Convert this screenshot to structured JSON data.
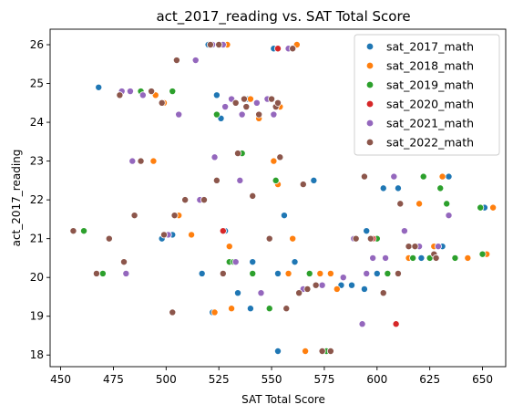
{
  "chart_data": {
    "type": "scatter",
    "title": "act_2017_reading vs. SAT Total Score",
    "xlabel": "SAT Total Score",
    "ylabel": "act_2017_reading",
    "xlim": [
      445,
      661
    ],
    "ylim": [
      17.7,
      26.4
    ],
    "xticks": [
      450,
      475,
      500,
      525,
      550,
      575,
      600,
      625,
      650
    ],
    "yticks": [
      18,
      19,
      20,
      21,
      22,
      23,
      24,
      25,
      26
    ],
    "grid": false,
    "legend_position": "top-right",
    "series": [
      {
        "name": "sat_2017_math",
        "color": "#1f77b4",
        "points": [
          [
            468,
            24.9
          ],
          [
            503,
            21.1
          ],
          [
            498,
            21.0
          ],
          [
            520,
            26.0
          ],
          [
            524,
            24.7
          ],
          [
            526,
            24.1
          ],
          [
            528,
            21.2
          ],
          [
            539,
            24.6
          ],
          [
            517,
            20.1
          ],
          [
            522,
            19.1
          ],
          [
            534,
            19.6
          ],
          [
            540,
            19.2
          ],
          [
            541,
            20.4
          ],
          [
            551,
            25.9
          ],
          [
            553,
            20.1
          ],
          [
            553,
            18.1
          ],
          [
            556,
            21.6
          ],
          [
            561,
            20.4
          ],
          [
            570,
            22.5
          ],
          [
            583,
            19.8
          ],
          [
            588,
            19.8
          ],
          [
            594,
            19.7
          ],
          [
            595,
            21.2
          ],
          [
            600,
            20.1
          ],
          [
            603,
            22.3
          ],
          [
            610,
            22.3
          ],
          [
            621,
            20.5
          ],
          [
            631,
            20.8
          ],
          [
            634,
            22.6
          ],
          [
            651,
            21.8
          ]
        ]
      },
      {
        "name": "sat_2018_math",
        "color": "#ff7f0e",
        "points": [
          [
            494,
            23.0
          ],
          [
            495,
            24.7
          ],
          [
            499,
            24.5
          ],
          [
            506,
            21.6
          ],
          [
            512,
            21.1
          ],
          [
            523,
            19.1
          ],
          [
            529,
            26.0
          ],
          [
            530,
            20.8
          ],
          [
            531,
            19.2
          ],
          [
            540,
            24.6
          ],
          [
            544,
            24.1
          ],
          [
            550,
            24.6
          ],
          [
            551,
            23.0
          ],
          [
            553,
            22.4
          ],
          [
            554,
            24.4
          ],
          [
            558,
            20.1
          ],
          [
            560,
            21.0
          ],
          [
            562,
            26.0
          ],
          [
            566,
            18.1
          ],
          [
            573,
            20.1
          ],
          [
            578,
            20.1
          ],
          [
            581,
            19.7
          ],
          [
            600,
            21.0
          ],
          [
            605,
            20.1
          ],
          [
            615,
            20.5
          ],
          [
            620,
            21.9
          ],
          [
            627,
            20.8
          ],
          [
            631,
            22.6
          ],
          [
            643,
            20.5
          ],
          [
            652,
            20.6
          ],
          [
            655,
            21.8
          ]
        ]
      },
      {
        "name": "sat_2019_math",
        "color": "#2ca02c",
        "points": [
          [
            461,
            21.2
          ],
          [
            470,
            20.1
          ],
          [
            479,
            24.8
          ],
          [
            488,
            24.8
          ],
          [
            503,
            24.8
          ],
          [
            524,
            24.2
          ],
          [
            527,
            21.2
          ],
          [
            530,
            20.4
          ],
          [
            532,
            20.4
          ],
          [
            536,
            23.2
          ],
          [
            541,
            20.1
          ],
          [
            545,
            19.6
          ],
          [
            552,
            22.5
          ],
          [
            549,
            19.2
          ],
          [
            568,
            20.1
          ],
          [
            576,
            18.1
          ],
          [
            600,
            21.0
          ],
          [
            605,
            20.1
          ],
          [
            609,
            18.8
          ],
          [
            617,
            20.5
          ],
          [
            622,
            22.6
          ],
          [
            625,
            20.5
          ],
          [
            630,
            22.3
          ],
          [
            633,
            21.9
          ],
          [
            637,
            20.5
          ],
          [
            649,
            21.8
          ],
          [
            650,
            20.6
          ]
        ]
      },
      {
        "name": "sat_2020_math",
        "color": "#d62728",
        "points": [
          [
            527,
            21.2
          ],
          [
            553,
            25.9
          ],
          [
            598,
            21.0
          ],
          [
            609,
            18.8
          ]
        ]
      },
      {
        "name": "sat_2021_math",
        "color": "#9467bd",
        "points": [
          [
            479,
            24.8
          ],
          [
            483,
            24.8
          ],
          [
            484,
            23.0
          ],
          [
            489,
            24.7
          ],
          [
            493,
            24.8
          ],
          [
            501,
            21.1
          ],
          [
            504,
            21.6
          ],
          [
            506,
            24.2
          ],
          [
            514,
            25.6
          ],
          [
            516,
            22.0
          ],
          [
            522,
            26.0
          ],
          [
            523,
            23.1
          ],
          [
            527,
            26.0
          ],
          [
            528,
            24.4
          ],
          [
            531,
            24.6
          ],
          [
            533,
            20.4
          ],
          [
            535,
            22.5
          ],
          [
            536,
            24.2
          ],
          [
            543,
            24.5
          ],
          [
            545,
            19.6
          ],
          [
            548,
            24.6
          ],
          [
            551,
            24.2
          ],
          [
            558,
            25.9
          ],
          [
            565,
            19.7
          ],
          [
            574,
            19.8
          ],
          [
            584,
            20.0
          ],
          [
            589,
            21.0
          ],
          [
            593,
            18.8
          ],
          [
            595,
            20.1
          ],
          [
            598,
            20.5
          ],
          [
            604,
            20.5
          ],
          [
            608,
            22.6
          ],
          [
            613,
            21.2
          ],
          [
            620,
            20.8
          ],
          [
            629,
            20.8
          ],
          [
            634,
            21.6
          ],
          [
            481,
            20.1
          ]
        ]
      },
      {
        "name": "sat_2022_math",
        "color": "#8c564b",
        "points": [
          [
            456,
            21.2
          ],
          [
            467,
            20.1
          ],
          [
            473,
            21.0
          ],
          [
            478,
            24.7
          ],
          [
            480,
            20.4
          ],
          [
            485,
            21.6
          ],
          [
            488,
            23.0
          ],
          [
            499,
            21.1
          ],
          [
            504,
            21.6
          ],
          [
            505,
            25.6
          ],
          [
            509,
            22.0
          ],
          [
            518,
            22.0
          ],
          [
            521,
            26.0
          ],
          [
            524,
            22.5
          ],
          [
            525,
            26.0
          ],
          [
            527,
            20.1
          ],
          [
            533,
            24.5
          ],
          [
            534,
            23.2
          ],
          [
            537,
            24.6
          ],
          [
            538,
            24.4
          ],
          [
            541,
            22.1
          ],
          [
            544,
            24.2
          ],
          [
            549,
            21.0
          ],
          [
            550,
            24.6
          ],
          [
            552,
            24.4
          ],
          [
            553,
            24.5
          ],
          [
            554,
            23.1
          ],
          [
            557,
            19.2
          ],
          [
            560,
            25.9
          ],
          [
            563,
            19.6
          ],
          [
            565,
            22.4
          ],
          [
            567,
            19.7
          ],
          [
            571,
            19.8
          ],
          [
            574,
            18.1
          ],
          [
            578,
            18.1
          ],
          [
            590,
            21.0
          ],
          [
            594,
            22.6
          ],
          [
            597,
            21.0
          ],
          [
            603,
            19.6
          ],
          [
            610,
            20.1
          ],
          [
            611,
            21.9
          ],
          [
            615,
            20.8
          ],
          [
            618,
            20.8
          ],
          [
            627,
            20.6
          ],
          [
            628,
            20.5
          ],
          [
            503,
            19.1
          ],
          [
            493,
            24.8
          ],
          [
            498,
            24.5
          ]
        ]
      }
    ]
  }
}
